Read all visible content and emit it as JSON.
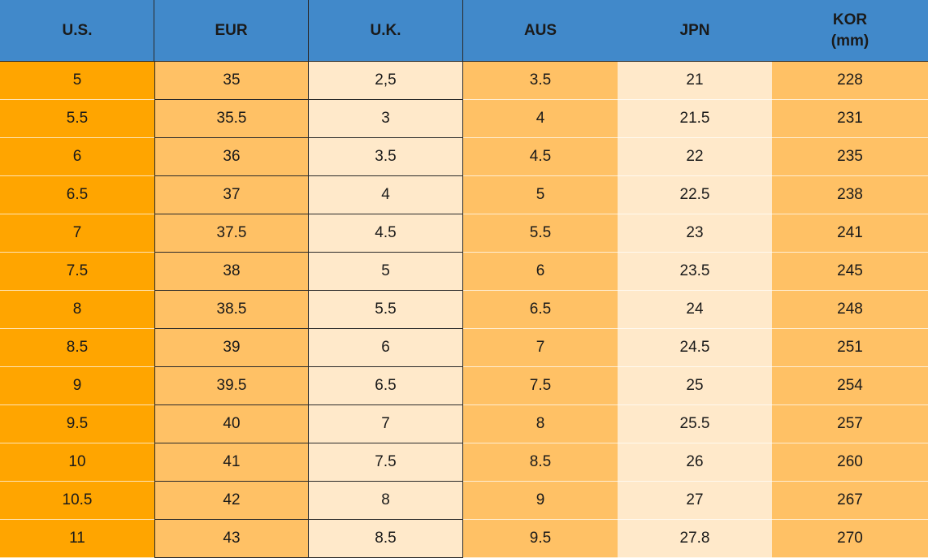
{
  "table": {
    "header": [
      "U.S.",
      "EUR",
      "U.K.",
      "AUS",
      "JPN",
      "KOR\n(mm)"
    ],
    "rows": [
      [
        "5",
        "35",
        "2,5",
        "3.5",
        "21",
        "228"
      ],
      [
        "5.5",
        "35.5",
        "3",
        "4",
        "21.5",
        "231"
      ],
      [
        "6",
        "36",
        "3.5",
        "4.5",
        "22",
        "235"
      ],
      [
        "6.5",
        "37",
        "4",
        "5",
        "22.5",
        "238"
      ],
      [
        "7",
        "37.5",
        "4.5",
        "5.5",
        "23",
        "241"
      ],
      [
        "7.5",
        "38",
        "5",
        "6",
        "23.5",
        "245"
      ],
      [
        "8",
        "38.5",
        "5.5",
        "6.5",
        "24",
        "248"
      ],
      [
        "8.5",
        "39",
        "6",
        "7",
        "24.5",
        "251"
      ],
      [
        "9",
        "39.5",
        "6.5",
        "7.5",
        "25",
        "254"
      ],
      [
        "9.5",
        "40",
        "7",
        "8",
        "25.5",
        "257"
      ],
      [
        "10",
        "41",
        "7.5",
        "8.5",
        "26",
        "260"
      ],
      [
        "10.5",
        "42",
        "8",
        "9",
        "27",
        "267"
      ],
      [
        "11",
        "43",
        "8.5",
        "9.5",
        "27.8",
        "270"
      ]
    ]
  }
}
